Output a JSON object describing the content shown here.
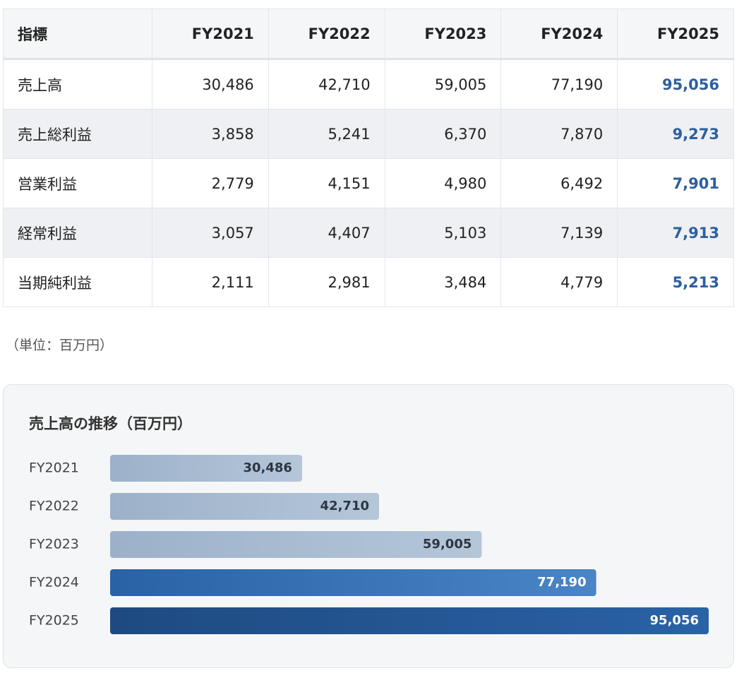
{
  "table": {
    "header": [
      "指標",
      "FY2021",
      "FY2022",
      "FY2023",
      "FY2024",
      "FY2025"
    ],
    "rows": [
      [
        "売上高",
        "30,486",
        "42,710",
        "59,005",
        "77,190",
        "95,056"
      ],
      [
        "売上総利益",
        "3,858",
        "5,241",
        "6,370",
        "7,870",
        "9,273"
      ],
      [
        "営業利益",
        "2,779",
        "4,151",
        "4,980",
        "6,492",
        "7,901"
      ],
      [
        "経常利益",
        "3,057",
        "4,407",
        "5,103",
        "7,139",
        "7,913"
      ],
      [
        "当期純利益",
        "2,111",
        "2,981",
        "3,484",
        "4,779",
        "5,213"
      ]
    ]
  },
  "note": "（単位：百万円）",
  "chart_data": {
    "type": "bar",
    "orientation": "horizontal",
    "title": "売上高の推移（百万円）",
    "categories": [
      "FY2021",
      "FY2022",
      "FY2023",
      "FY2024",
      "FY2025"
    ],
    "values": [
      30486,
      42710,
      59005,
      77190,
      95056
    ],
    "value_labels": [
      "30,486",
      "42,710",
      "59,005",
      "77,190",
      "95,056"
    ],
    "colors": [
      [
        "#9cb1c9",
        "#b5c6d9"
      ],
      [
        "#9cb1c9",
        "#b5c6d9"
      ],
      [
        "#9cb1c9",
        "#b5c6d9"
      ],
      [
        "#2a62a6",
        "#4a85c6"
      ],
      [
        "#1e4a80",
        "#2a62a6"
      ]
    ]
  }
}
